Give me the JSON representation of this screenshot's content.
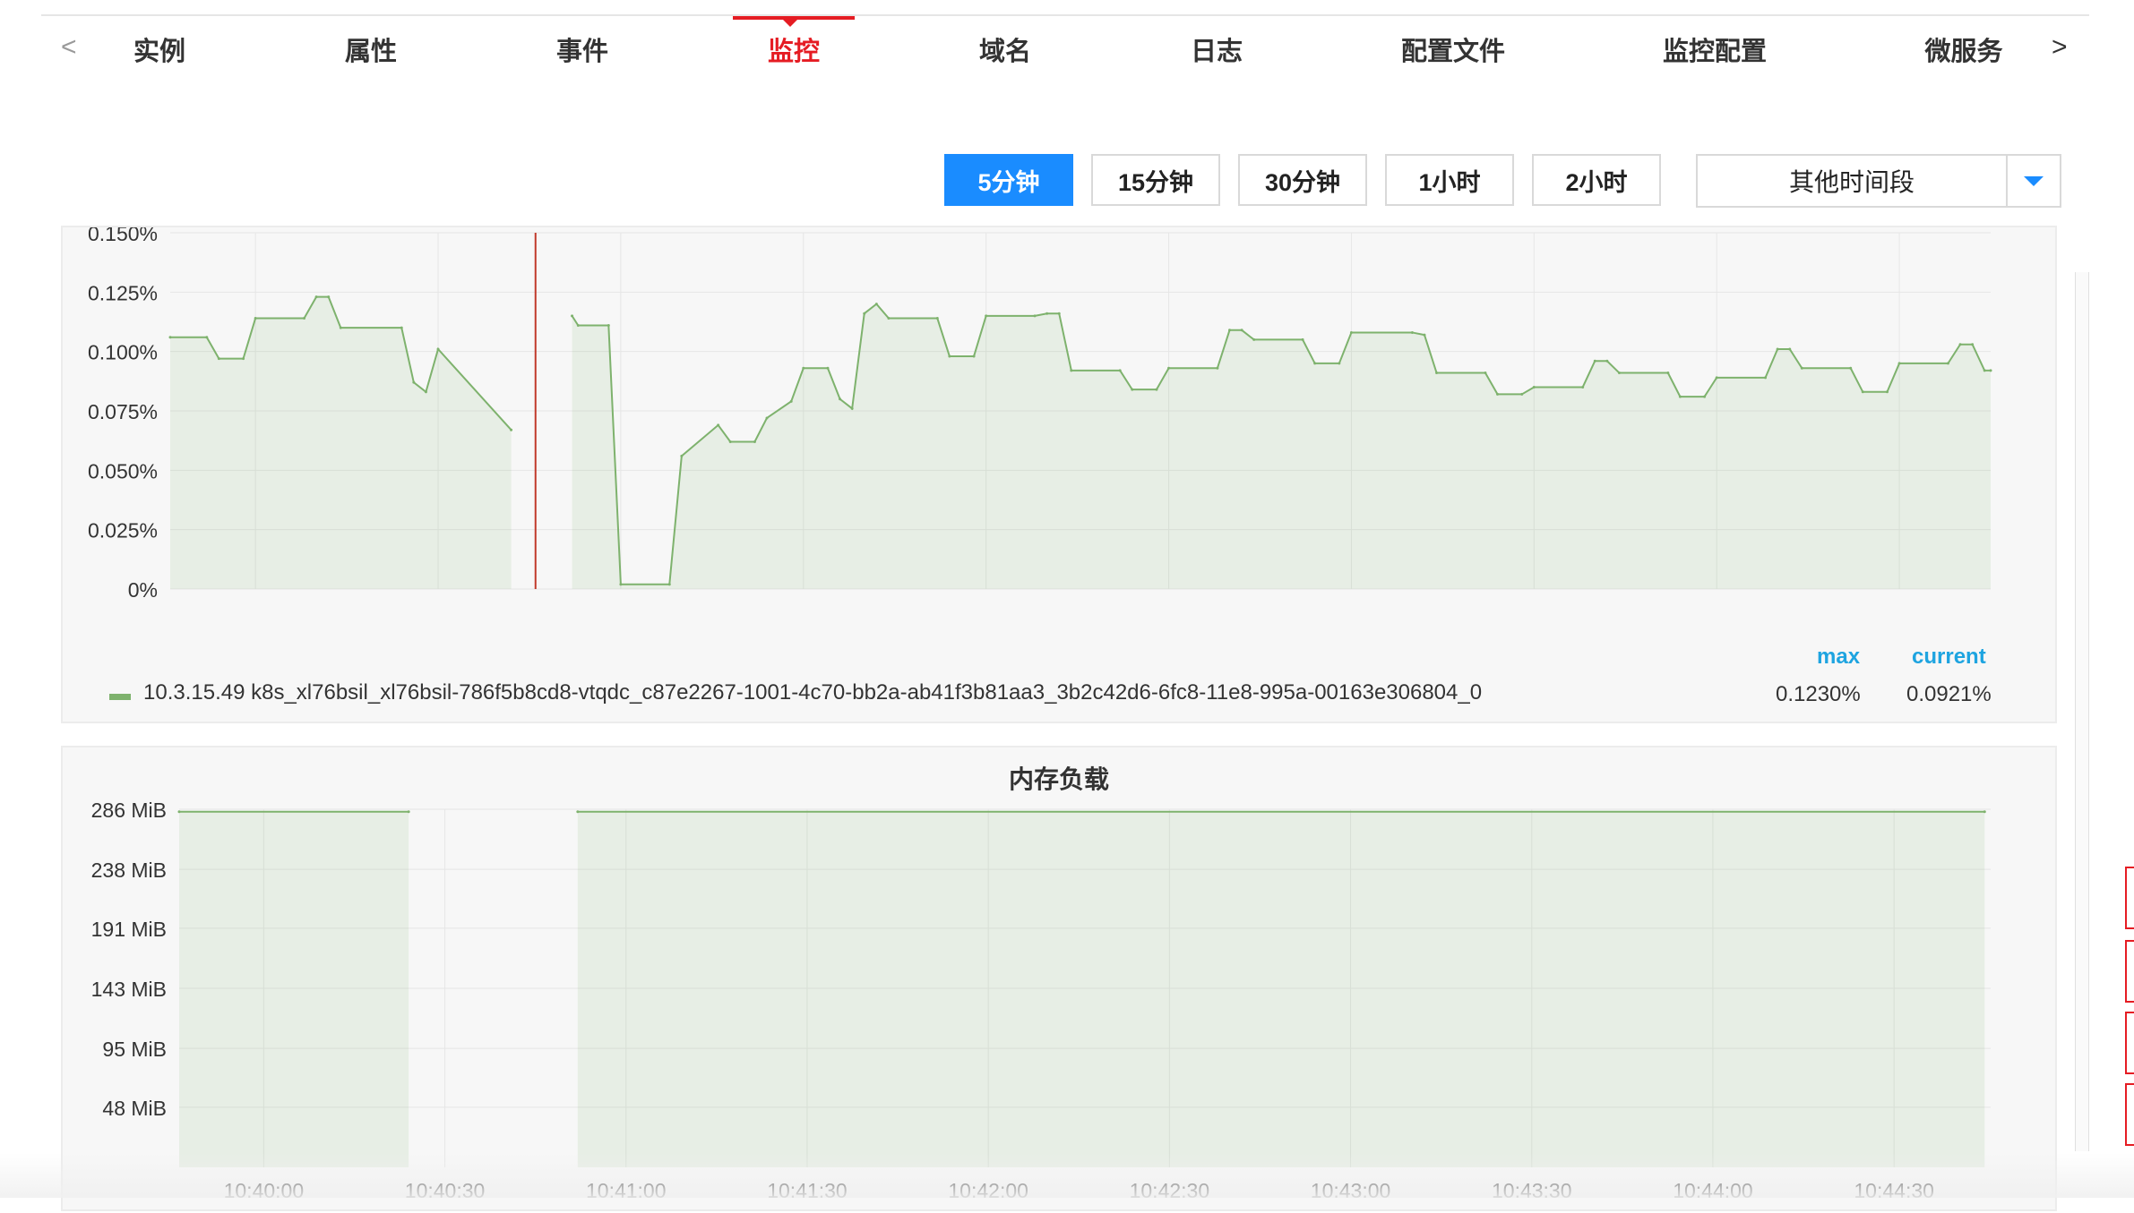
{
  "tabs": {
    "prev": "<",
    "next": ">",
    "items": [
      {
        "label": "实例"
      },
      {
        "label": "属性"
      },
      {
        "label": "事件"
      },
      {
        "label": "监控",
        "active": true
      },
      {
        "label": "域名"
      },
      {
        "label": "日志"
      },
      {
        "label": "配置文件"
      },
      {
        "label": "监控配置"
      },
      {
        "label": "微服务"
      }
    ]
  },
  "time_range": {
    "buttons": [
      {
        "label": "5分钟",
        "active": true
      },
      {
        "label": "15分钟"
      },
      {
        "label": "30分钟"
      },
      {
        "label": "1小时"
      },
      {
        "label": "2小时"
      }
    ],
    "dropdown_label": "其他时间段"
  },
  "colors": {
    "accent_red": "#e51c23",
    "accent_blue": "#1a8cff",
    "series_green": "#7eb26d",
    "legend_header": "#1ea4e0"
  },
  "legend": {
    "max_header": "max",
    "current_header": "current",
    "series_name": "10.3.15.49 k8s_xl76bsil_xl76bsil-786f5b8cd8-vtqdc_c87e2267-1001-4c70-bb2a-ab41f3b81aa3_3b2c42d6-6fc8-11e8-995a-00163e306804_0",
    "max_value": "0.1230%",
    "current_value": "0.0921%"
  },
  "chart_data": [
    {
      "type": "area",
      "title": "",
      "y_unit": "%",
      "ylim": [
        0,
        0.15
      ],
      "y_ticks": [
        "0%",
        "0.025%",
        "0.050%",
        "0.075%",
        "0.100%",
        "0.125%",
        "0.150%"
      ],
      "x_range": [
        "10:39:46",
        "10:44:45"
      ],
      "x_ticks": [
        "10:40:00",
        "10:40:30",
        "10:41:00",
        "10:41:30",
        "10:42:00",
        "10:42:30",
        "10:43:00",
        "10:43:30",
        "10:44:00",
        "10:44:30"
      ],
      "grid": true,
      "marker_time": "10:40:46",
      "series": [
        {
          "name": "10.3.15.49 k8s_xl76bsil_xl76bsil-786f5b8cd8-vtqdc_c87e2267-1001-4c70-bb2a-ab41f3b81aa3_3b2c42d6-6fc8-11e8-995a-00163e306804_0",
          "segments": [
            [
              [
                "10:39:46",
                0.106
              ],
              [
                "10:39:52",
                0.106
              ],
              [
                "10:39:54",
                0.097
              ],
              [
                "10:39:58",
                0.097
              ],
              [
                "10:40:00",
                0.114
              ],
              [
                "10:40:08",
                0.114
              ],
              [
                "10:40:10",
                0.123
              ],
              [
                "10:40:12",
                0.123
              ],
              [
                "10:40:14",
                0.11
              ],
              [
                "10:40:24",
                0.11
              ],
              [
                "10:40:26",
                0.087
              ],
              [
                "10:40:28",
                0.083
              ],
              [
                "10:40:30",
                0.101
              ],
              [
                "10:40:42",
                0.067
              ]
            ],
            [
              [
                "10:40:52",
                0.115
              ],
              [
                "10:40:53",
                0.111
              ],
              [
                "10:40:58",
                0.111
              ],
              [
                "10:41:00",
                0.002
              ],
              [
                "10:41:08",
                0.002
              ],
              [
                "10:41:10",
                0.056
              ],
              [
                "10:41:16",
                0.069
              ],
              [
                "10:41:18",
                0.062
              ],
              [
                "10:41:22",
                0.062
              ],
              [
                "10:41:24",
                0.072
              ],
              [
                "10:41:28",
                0.079
              ],
              [
                "10:41:30",
                0.093
              ],
              [
                "10:41:34",
                0.093
              ],
              [
                "10:41:36",
                0.08
              ],
              [
                "10:41:38",
                0.076
              ],
              [
                "10:41:40",
                0.116
              ],
              [
                "10:41:42",
                0.12
              ],
              [
                "10:41:44",
                0.114
              ],
              [
                "10:41:52",
                0.114
              ],
              [
                "10:41:54",
                0.098
              ],
              [
                "10:41:58",
                0.098
              ],
              [
                "10:42:00",
                0.115
              ],
              [
                "10:42:08",
                0.115
              ],
              [
                "10:42:10",
                0.116
              ],
              [
                "10:42:12",
                0.116
              ],
              [
                "10:42:14",
                0.092
              ],
              [
                "10:42:22",
                0.092
              ],
              [
                "10:42:24",
                0.084
              ],
              [
                "10:42:28",
                0.084
              ],
              [
                "10:42:30",
                0.093
              ],
              [
                "10:42:38",
                0.093
              ],
              [
                "10:42:40",
                0.109
              ],
              [
                "10:42:42",
                0.109
              ],
              [
                "10:42:44",
                0.105
              ],
              [
                "10:42:52",
                0.105
              ],
              [
                "10:42:54",
                0.095
              ],
              [
                "10:42:58",
                0.095
              ],
              [
                "10:43:00",
                0.108
              ],
              [
                "10:43:10",
                0.108
              ],
              [
                "10:43:12",
                0.107
              ],
              [
                "10:43:14",
                0.091
              ],
              [
                "10:43:22",
                0.091
              ],
              [
                "10:43:24",
                0.082
              ],
              [
                "10:43:28",
                0.082
              ],
              [
                "10:43:30",
                0.085
              ],
              [
                "10:43:38",
                0.085
              ],
              [
                "10:43:40",
                0.096
              ],
              [
                "10:43:42",
                0.096
              ],
              [
                "10:43:44",
                0.091
              ],
              [
                "10:43:52",
                0.091
              ],
              [
                "10:43:54",
                0.081
              ],
              [
                "10:43:58",
                0.081
              ],
              [
                "10:44:00",
                0.089
              ],
              [
                "10:44:08",
                0.089
              ],
              [
                "10:44:10",
                0.101
              ],
              [
                "10:44:12",
                0.101
              ],
              [
                "10:44:14",
                0.093
              ],
              [
                "10:44:22",
                0.093
              ],
              [
                "10:44:24",
                0.083
              ],
              [
                "10:44:28",
                0.083
              ],
              [
                "10:44:30",
                0.095
              ],
              [
                "10:44:38",
                0.095
              ],
              [
                "10:44:40",
                0.103
              ],
              [
                "10:44:42",
                0.103
              ],
              [
                "10:44:44",
                0.092
              ],
              [
                "10:44:45",
                0.092
              ]
            ]
          ]
        }
      ]
    },
    {
      "type": "area",
      "title": "内存负载",
      "y_unit": "MiB",
      "ylim": [
        0,
        286
      ],
      "y_ticks": [
        "48 MiB",
        "95 MiB",
        "143 MiB",
        "191 MiB",
        "238 MiB",
        "286 MiB"
      ],
      "x_range": [
        "10:39:46",
        "10:44:46"
      ],
      "x_ticks": [
        "10:40:00",
        "10:40:30",
        "10:41:00",
        "10:41:30",
        "10:42:00",
        "10:42:30",
        "10:43:00",
        "10:43:30",
        "10:44:00",
        "10:44:30"
      ],
      "grid": true,
      "series": [
        {
          "name": "",
          "segments": [
            [
              [
                "10:39:46",
                284
              ],
              [
                "10:40:24",
                284
              ]
            ],
            [
              [
                "10:40:52",
                284
              ],
              [
                "10:44:45",
                284
              ]
            ]
          ]
        }
      ]
    }
  ]
}
